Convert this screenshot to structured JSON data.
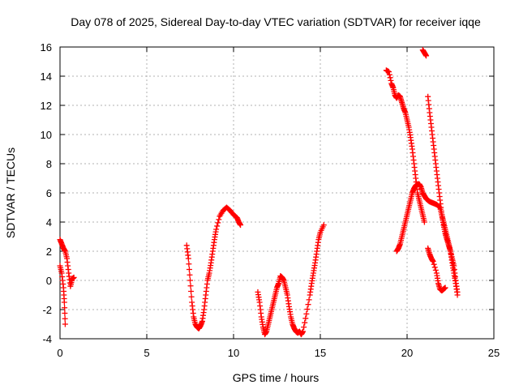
{
  "chart_data": {
    "type": "scatter",
    "title": "Day 078 of 2025, Sidereal Day-to-day VTEC variation (SDTVAR) for receiver iqqe",
    "xlabel": "GPS time / hours",
    "ylabel": "SDTVAR / TECUs",
    "xlim": [
      0,
      25
    ],
    "ylim": [
      -4,
      16
    ],
    "x_ticks": [
      0,
      5,
      10,
      15,
      20,
      25
    ],
    "y_ticks": [
      -4,
      -2,
      0,
      2,
      4,
      6,
      8,
      10,
      12,
      14,
      16
    ],
    "grid": true,
    "marker": "+",
    "color": "#ff0000",
    "series": [
      {
        "points": [
          [
            0.0,
            1.0
          ],
          [
            0.1,
            0.5
          ],
          [
            0.2,
            -0.5
          ],
          [
            0.25,
            -1.5
          ],
          [
            0.3,
            -3.0
          ],
          [
            0.0,
            2.8
          ],
          [
            0.1,
            2.5
          ],
          [
            0.2,
            2.2
          ],
          [
            0.3,
            2.0
          ],
          [
            0.4,
            1.5
          ],
          [
            0.5,
            0.5
          ],
          [
            0.6,
            -0.4
          ],
          [
            0.7,
            0.1
          ],
          [
            0.8,
            0.2
          ],
          [
            7.3,
            2.4
          ],
          [
            7.4,
            1.5
          ],
          [
            7.5,
            0.0
          ],
          [
            7.6,
            -1.5
          ],
          [
            7.7,
            -2.5
          ],
          [
            7.8,
            -3.0
          ],
          [
            7.9,
            -3.2
          ],
          [
            8.0,
            -3.3
          ],
          [
            8.1,
            -3.1
          ],
          [
            8.2,
            -2.8
          ],
          [
            8.3,
            -2.0
          ],
          [
            8.4,
            -1.0
          ],
          [
            8.5,
            0.0
          ],
          [
            8.6,
            0.5
          ],
          [
            8.7,
            1.2
          ],
          [
            8.8,
            2.0
          ],
          [
            8.9,
            2.8
          ],
          [
            9.0,
            3.5
          ],
          [
            9.2,
            4.4
          ],
          [
            9.4,
            4.8
          ],
          [
            9.6,
            5.0
          ],
          [
            9.8,
            4.8
          ],
          [
            10.0,
            4.5
          ],
          [
            10.2,
            4.3
          ],
          [
            10.3,
            4.0
          ],
          [
            10.4,
            3.8
          ],
          [
            11.4,
            -0.8
          ],
          [
            11.5,
            -1.5
          ],
          [
            11.6,
            -2.5
          ],
          [
            11.7,
            -3.2
          ],
          [
            11.8,
            -3.7
          ],
          [
            11.9,
            -3.5
          ],
          [
            12.0,
            -3.0
          ],
          [
            12.1,
            -2.5
          ],
          [
            12.2,
            -2.0
          ],
          [
            12.3,
            -1.5
          ],
          [
            12.4,
            -1.0
          ],
          [
            12.5,
            -0.5
          ],
          [
            12.6,
            -0.2
          ],
          [
            12.7,
            0.3
          ],
          [
            12.8,
            0.2
          ],
          [
            12.9,
            0.0
          ],
          [
            13.0,
            -0.5
          ],
          [
            13.1,
            -1.0
          ],
          [
            13.2,
            -1.8
          ],
          [
            13.3,
            -2.5
          ],
          [
            13.4,
            -3.0
          ],
          [
            13.5,
            -3.3
          ],
          [
            13.6,
            -3.5
          ],
          [
            13.7,
            -3.6
          ],
          [
            13.8,
            -3.5
          ],
          [
            13.9,
            -3.7
          ],
          [
            14.0,
            -3.5
          ],
          [
            14.2,
            -2.3
          ],
          [
            14.4,
            -1.0
          ],
          [
            14.5,
            -0.2
          ],
          [
            14.6,
            0.5
          ],
          [
            14.7,
            1.2
          ],
          [
            14.8,
            2.0
          ],
          [
            14.9,
            2.8
          ],
          [
            15.0,
            3.3
          ],
          [
            15.2,
            3.8
          ],
          [
            18.8,
            14.4
          ],
          [
            18.95,
            14.3
          ],
          [
            19.1,
            13.5
          ],
          [
            19.2,
            13.2
          ],
          [
            19.3,
            12.7
          ],
          [
            19.4,
            12.5
          ],
          [
            19.5,
            12.7
          ],
          [
            19.6,
            12.6
          ],
          [
            19.7,
            12.2
          ],
          [
            19.8,
            11.8
          ],
          [
            19.9,
            11.5
          ],
          [
            20.0,
            11.0
          ],
          [
            20.1,
            10.5
          ],
          [
            20.2,
            9.8
          ],
          [
            20.3,
            9.0
          ],
          [
            20.4,
            8.0
          ],
          [
            20.5,
            7.0
          ],
          [
            20.6,
            6.0
          ],
          [
            20.7,
            5.5
          ],
          [
            20.8,
            5.0
          ],
          [
            20.9,
            4.5
          ],
          [
            21.0,
            4.0
          ],
          [
            19.4,
            2.0
          ],
          [
            19.5,
            2.2
          ],
          [
            19.6,
            2.5
          ],
          [
            19.7,
            3.0
          ],
          [
            19.8,
            3.5
          ],
          [
            19.9,
            4.0
          ],
          [
            20.0,
            4.5
          ],
          [
            20.1,
            5.0
          ],
          [
            20.2,
            5.5
          ],
          [
            20.3,
            6.0
          ],
          [
            20.4,
            6.3
          ],
          [
            20.5,
            6.5
          ],
          [
            20.6,
            6.6
          ],
          [
            20.7,
            6.6
          ],
          [
            20.8,
            6.4
          ],
          [
            20.9,
            6.0
          ],
          [
            21.0,
            5.8
          ],
          [
            21.1,
            5.6
          ],
          [
            21.2,
            5.5
          ],
          [
            21.3,
            5.4
          ],
          [
            21.5,
            5.3
          ],
          [
            21.7,
            5.2
          ],
          [
            21.9,
            5.0
          ],
          [
            22.0,
            4.5
          ],
          [
            22.1,
            4.0
          ],
          [
            22.2,
            3.5
          ],
          [
            22.3,
            3.0
          ],
          [
            22.4,
            2.5
          ],
          [
            22.5,
            2.0
          ],
          [
            22.6,
            1.5
          ],
          [
            22.7,
            1.0
          ],
          [
            22.8,
            0.0
          ],
          [
            22.9,
            -0.8
          ],
          [
            20.9,
            15.8
          ],
          [
            21.0,
            15.6
          ],
          [
            21.1,
            15.4
          ],
          [
            21.2,
            12.6
          ],
          [
            21.3,
            11.5
          ],
          [
            21.4,
            10.5
          ],
          [
            21.5,
            9.5
          ],
          [
            21.6,
            8.5
          ],
          [
            21.7,
            7.5
          ],
          [
            21.8,
            6.5
          ],
          [
            21.9,
            5.5
          ],
          [
            22.0,
            4.5
          ],
          [
            22.1,
            3.8
          ],
          [
            22.2,
            3.2
          ],
          [
            22.3,
            2.8
          ],
          [
            22.4,
            2.4
          ],
          [
            22.5,
            2.0
          ],
          [
            22.6,
            1.2
          ],
          [
            22.7,
            0.5
          ],
          [
            22.8,
            -0.2
          ],
          [
            22.9,
            -1.0
          ],
          [
            21.2,
            2.2
          ],
          [
            21.3,
            1.8
          ],
          [
            21.4,
            1.5
          ],
          [
            21.5,
            1.3
          ],
          [
            21.7,
            0.5
          ],
          [
            21.8,
            -0.2
          ],
          [
            21.9,
            -0.6
          ],
          [
            22.0,
            -0.7
          ],
          [
            22.1,
            -0.6
          ],
          [
            22.2,
            -0.5
          ]
        ]
      }
    ]
  }
}
